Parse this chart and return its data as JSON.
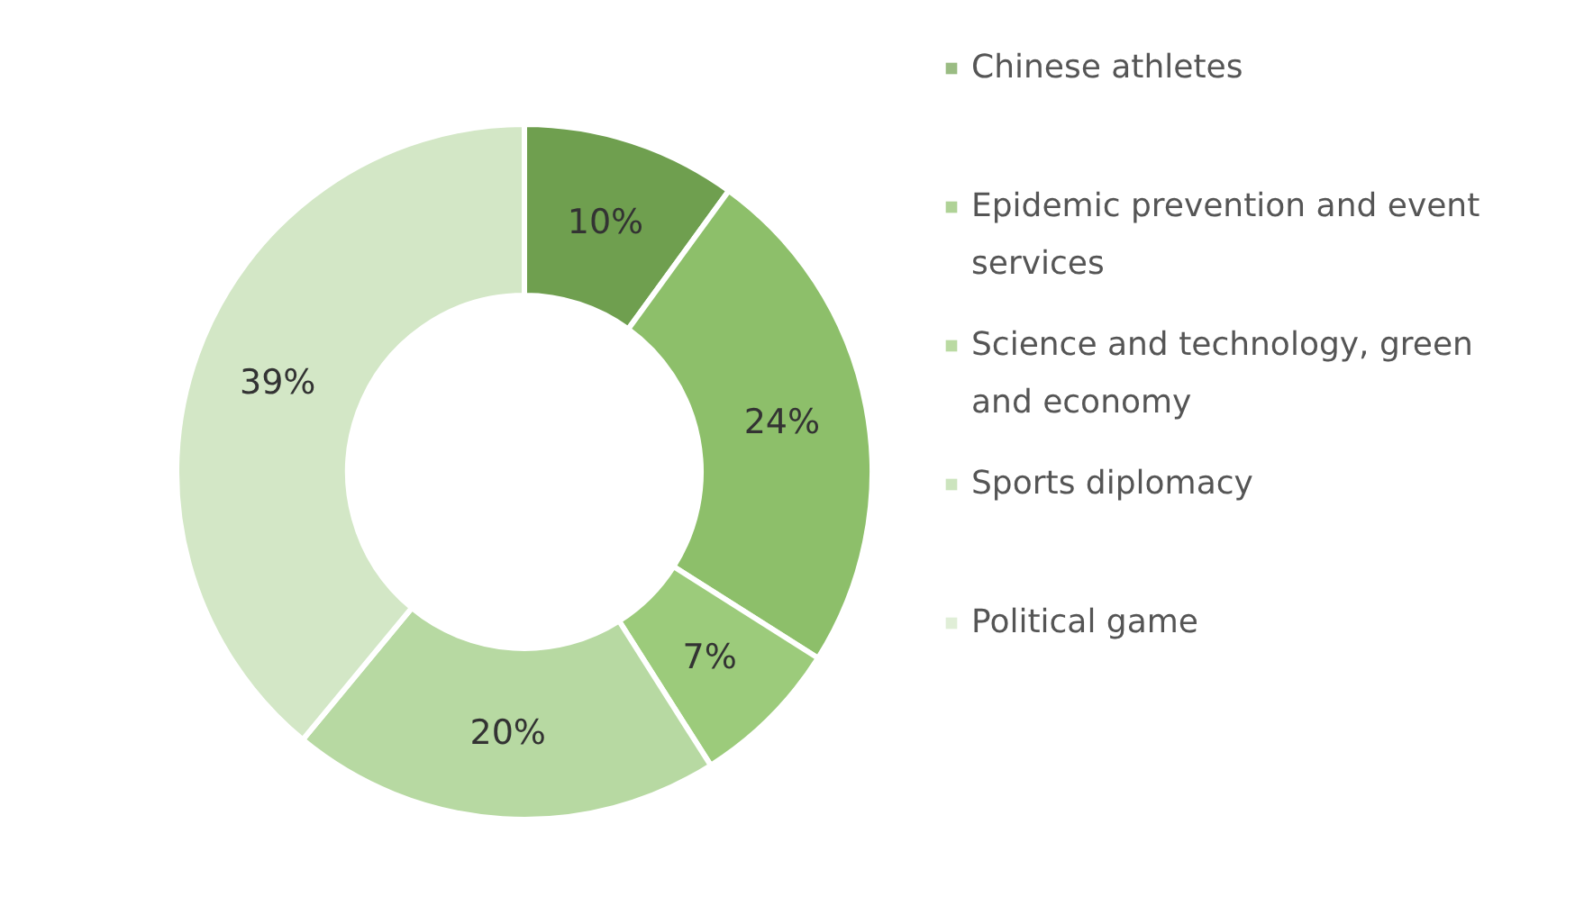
{
  "chart_data": {
    "type": "donut",
    "categories": [
      "Chinese athletes",
      "Epidemic prevention and event services",
      "Science and technology, green and economy",
      "Sports diplomacy",
      "Political game"
    ],
    "values": [
      10,
      24,
      7,
      20,
      39
    ],
    "colors": [
      "#6f9f4f",
      "#8dbf6a",
      "#9ccb7b",
      "#b7d9a2",
      "#d3e7c6"
    ],
    "value_labels": [
      "10%",
      "24%",
      "7%",
      "20%",
      "39%"
    ],
    "legend": "right"
  }
}
